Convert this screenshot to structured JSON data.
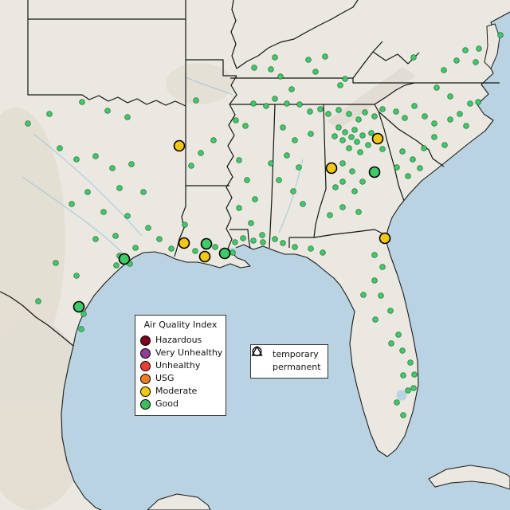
{
  "map": {
    "colors": {
      "land": "#ebe8e1",
      "water": "#b9d3e2",
      "border": "#141414",
      "river": "#9fc3d8"
    }
  },
  "legend_aqi": {
    "title": "Air Quality Index",
    "items": [
      {
        "label": "Hazardous",
        "color": "#7e0023"
      },
      {
        "label": "Very Unhealthy",
        "color": "#8f3f97"
      },
      {
        "label": "Unhealthy",
        "color": "#e93f33"
      },
      {
        "label": "USG",
        "color": "#ef7e23"
      },
      {
        "label": "Moderate",
        "color": "#f2c811"
      },
      {
        "label": "Good",
        "color": "#3dbd5d"
      }
    ]
  },
  "legend_shape": {
    "items": [
      {
        "label": "temporary",
        "symbol": "circle"
      },
      {
        "label": "permanent",
        "symbol": "triangle"
      }
    ]
  },
  "chart_data": {
    "type": "scatter",
    "units": "screen pixels (640x640 map of the southeastern United States)",
    "series": [
      {
        "name": "Good",
        "size": "small",
        "symbol": "circle",
        "color": "#3ecb67",
        "points": [
          [
            519,
            72
          ],
          [
            548,
            110
          ],
          [
            557,
            88
          ],
          [
            573,
            76
          ],
          [
            584,
            63
          ],
          [
            601,
            61
          ],
          [
            597,
            78
          ],
          [
            565,
            121
          ],
          [
            577,
            143
          ],
          [
            590,
            130
          ],
          [
            628,
            44
          ],
          [
            340,
            87
          ],
          [
            352,
            96
          ],
          [
            366,
            112
          ],
          [
            387,
            75
          ],
          [
            408,
            71
          ],
          [
            396,
            90
          ],
          [
            427,
            107
          ],
          [
            433,
            99
          ],
          [
            345,
            72
          ],
          [
            319,
            85
          ],
          [
            600,
            128
          ],
          [
            565,
            150
          ],
          [
            545,
            155
          ],
          [
            533,
            146
          ],
          [
            520,
            133
          ],
          [
            508,
            148
          ],
          [
            497,
            140
          ],
          [
            545,
            172
          ],
          [
            558,
            182
          ],
          [
            532,
            186
          ],
          [
            585,
            158
          ],
          [
            505,
            190
          ],
          [
            518,
            200
          ],
          [
            498,
            210
          ],
          [
            512,
            221
          ],
          [
            527,
            211
          ],
          [
            296,
            151
          ],
          [
            308,
            158
          ],
          [
            318,
            130
          ],
          [
            334,
            133
          ],
          [
            345,
            124
          ],
          [
            360,
            130
          ],
          [
            376,
            131
          ],
          [
            389,
            140
          ],
          [
            402,
            137
          ],
          [
            412,
            143
          ],
          [
            425,
            138
          ],
          [
            438,
            143
          ],
          [
            450,
            150
          ],
          [
            458,
            141
          ],
          [
            470,
            146
          ],
          [
            480,
            137
          ],
          [
            425,
            160
          ],
          [
            433,
            166
          ],
          [
            441,
            172
          ],
          [
            430,
            176
          ],
          [
            445,
            163
          ],
          [
            448,
            178
          ],
          [
            438,
            186
          ],
          [
            455,
            170
          ],
          [
            420,
            171
          ],
          [
            452,
            191
          ],
          [
            462,
            182
          ],
          [
            466,
            167
          ],
          [
            480,
            187
          ],
          [
            430,
            205
          ],
          [
            442,
            215
          ],
          [
            430,
            228
          ],
          [
            445,
            240
          ],
          [
            421,
            235
          ],
          [
            455,
            228
          ],
          [
            430,
            260
          ],
          [
            450,
            266
          ],
          [
            414,
            270
          ],
          [
            355,
            160
          ],
          [
            370,
            176
          ],
          [
            360,
            195
          ],
          [
            375,
            210
          ],
          [
            350,
            226
          ],
          [
            368,
            240
          ],
          [
            380,
            256
          ],
          [
            340,
            205
          ],
          [
            390,
            168
          ],
          [
            300,
            201
          ],
          [
            310,
            226
          ],
          [
            320,
            250
          ],
          [
            300,
            261
          ],
          [
            315,
            280
          ],
          [
            329,
            295
          ],
          [
            246,
            126
          ],
          [
            252,
            192
          ],
          [
            268,
            176
          ],
          [
            240,
            208
          ],
          [
            62,
            143
          ],
          [
            103,
            128
          ],
          [
            135,
            139
          ],
          [
            160,
            147
          ],
          [
            75,
            186
          ],
          [
            96,
            200
          ],
          [
            120,
            196
          ],
          [
            141,
            211
          ],
          [
            165,
            206
          ],
          [
            180,
            241
          ],
          [
            150,
            236
          ],
          [
            110,
            241
          ],
          [
            90,
            256
          ],
          [
            130,
            266
          ],
          [
            160,
            271
          ],
          [
            186,
            286
          ],
          [
            145,
            296
          ],
          [
            120,
            300
          ],
          [
            170,
            311
          ],
          [
            150,
            321
          ],
          [
            163,
            331
          ],
          [
            146,
            333
          ],
          [
            48,
            378
          ],
          [
            70,
            330
          ],
          [
            96,
            346
          ],
          [
            105,
            394
          ],
          [
            102,
            413
          ],
          [
            35,
            155
          ],
          [
            200,
            300
          ],
          [
            215,
            312
          ],
          [
            245,
            315
          ],
          [
            270,
            310
          ],
          [
            295,
            304
          ],
          [
            305,
            299
          ],
          [
            292,
            317
          ],
          [
            318,
            302
          ],
          [
            232,
            282
          ],
          [
            330,
            304
          ],
          [
            345,
            300
          ],
          [
            355,
            305
          ],
          [
            370,
            310
          ],
          [
            390,
            312
          ],
          [
            405,
            317
          ],
          [
            470,
            320
          ],
          [
            480,
            335
          ],
          [
            470,
            352
          ],
          [
            456,
            370
          ],
          [
            478,
            371
          ],
          [
            490,
            390
          ],
          [
            471,
            401
          ],
          [
            500,
            420
          ],
          [
            505,
            440
          ],
          [
            491,
            431
          ],
          [
            515,
            455
          ],
          [
            520,
            470
          ],
          [
            506,
            471
          ],
          [
            512,
            490
          ],
          [
            498,
            505
          ],
          [
            506,
            521
          ],
          [
            519,
            487
          ]
        ]
      },
      {
        "name": "Good",
        "size": "large",
        "symbol": "circle",
        "color": "#3ecb67",
        "points": [
          [
            470,
            216
          ],
          [
            156,
            325
          ],
          [
            99,
            385
          ],
          [
            259,
            306
          ],
          [
            282,
            318
          ]
        ]
      },
      {
        "name": "Moderate",
        "size": "large",
        "symbol": "circle",
        "color": "#f2c811",
        "points": [
          [
            225,
            183
          ],
          [
            474,
            174
          ],
          [
            416,
            211
          ],
          [
            231,
            305
          ],
          [
            257,
            322
          ],
          [
            483,
            299
          ]
        ]
      }
    ]
  }
}
